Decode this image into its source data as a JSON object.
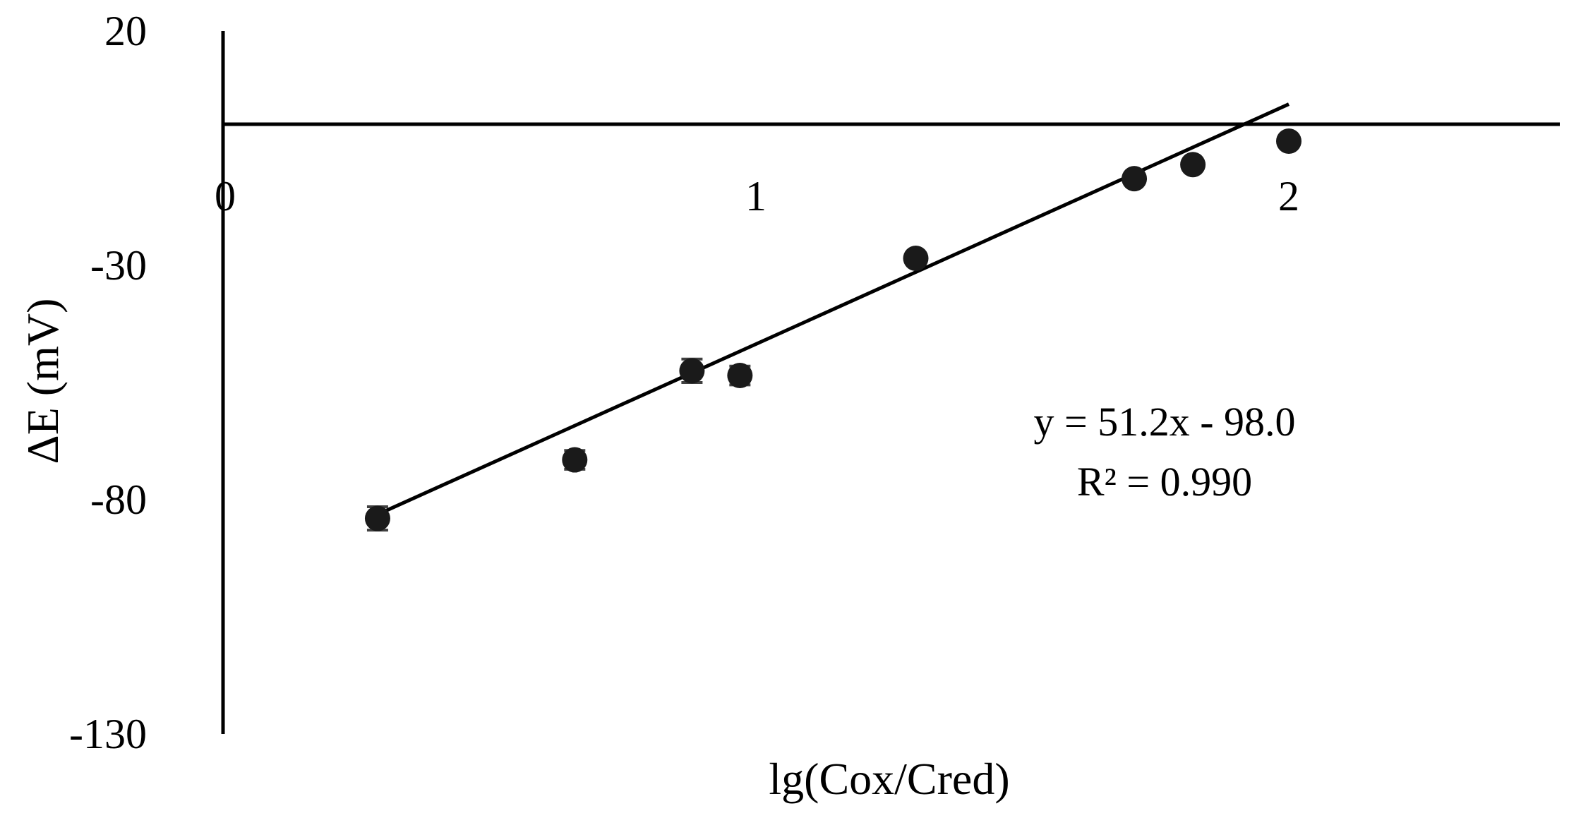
{
  "chart_data": {
    "type": "scatter",
    "xlabel": "lg(Cox/Cred)",
    "ylabel": "ΔE (mV)",
    "xlim": [
      0,
      2.5
    ],
    "ylim": [
      -130,
      20
    ],
    "x_ticks": [
      {
        "value": 0,
        "label": "0"
      },
      {
        "value": 1,
        "label": "1"
      },
      {
        "value": 2,
        "label": "2"
      }
    ],
    "y_ticks": [
      {
        "value": 20,
        "label": "20"
      },
      {
        "value": -30,
        "label": "-30"
      },
      {
        "value": -80,
        "label": "-80"
      },
      {
        "value": -130,
        "label": "-130"
      }
    ],
    "grid": false,
    "marker_color": "#1a1a1a",
    "errorbar_color": "#404040",
    "series": [
      {
        "points": [
          {
            "x": 0.29,
            "y": -84.0,
            "err": 2.5
          },
          {
            "x": 0.66,
            "y": -71.5,
            "err": 2.0
          },
          {
            "x": 0.88,
            "y": -52.5,
            "err": 2.5
          },
          {
            "x": 0.97,
            "y": -53.5,
            "err": 2.0
          },
          {
            "x": 1.3,
            "y": -28.5,
            "err": 1.0
          },
          {
            "x": 1.71,
            "y": -11.5,
            "err": 1.0
          },
          {
            "x": 1.82,
            "y": -8.5,
            "err": 0.8
          },
          {
            "x": 2.0,
            "y": -3.5,
            "err": 0.8
          }
        ]
      }
    ],
    "trendline": {
      "slope": 51.2,
      "intercept": -98.0,
      "x_range": [
        0.29,
        2.0
      ],
      "equation": "y = 51.2x - 98.0",
      "r_squared": "R² = 0.990"
    }
  }
}
